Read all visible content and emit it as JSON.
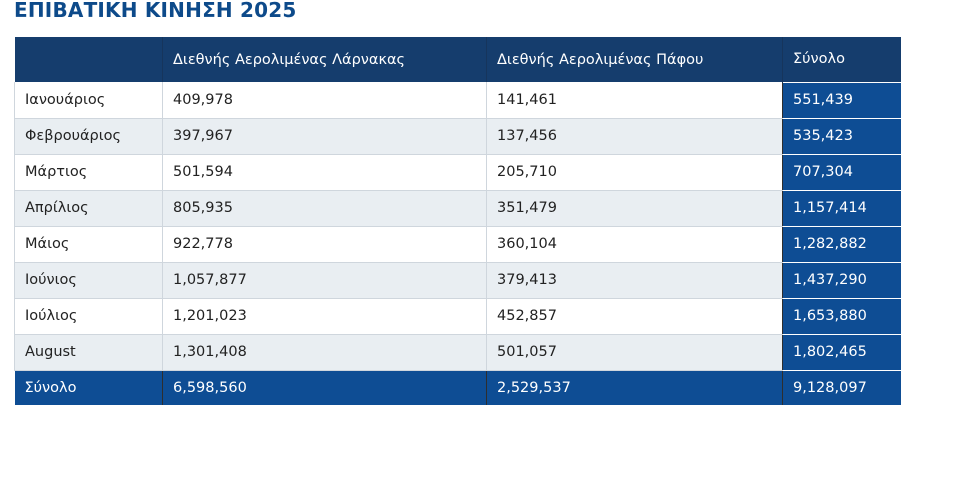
{
  "page": {
    "title": "ΕΠΙΒΑΤΙΚΗ ΚΙΝΗΣΗ 2025"
  },
  "table": {
    "headers": [
      "",
      "Διεθνής Αερολιμένας Λάρνακας",
      "Διεθνής Αερολιμένας Πάφου",
      "Σύνολο"
    ],
    "rows": [
      {
        "month": "Ιανουάριος",
        "larnaca": "409,978",
        "paphos": "141,461",
        "total": "551,439"
      },
      {
        "month": "Φεβρουάριος",
        "larnaca": "397,967",
        "paphos": "137,456",
        "total": "535,423"
      },
      {
        "month": "Μάρτιος",
        "larnaca": "501,594",
        "paphos": "205,710",
        "total": "707,304"
      },
      {
        "month": "Απρίλιος",
        "larnaca": "805,935",
        "paphos": "351,479",
        "total": "1,157,414"
      },
      {
        "month": "Μάιος",
        "larnaca": "922,778",
        "paphos": "360,104",
        "total": "1,282,882"
      },
      {
        "month": "Ιούνιος",
        "larnaca": "1,057,877",
        "paphos": "379,413",
        "total": "1,437,290"
      },
      {
        "month": "Ιούλιος",
        "larnaca": "1,201,023",
        "paphos": "452,857",
        "total": "1,653,880"
      },
      {
        "month": "August",
        "larnaca": "1,301,408",
        "paphos": "501,057",
        "total": "1,802,465"
      }
    ],
    "footer": {
      "label": "Σύνολο",
      "larnaca": "6,598,560",
      "paphos": "2,529,537",
      "total": "9,128,097"
    }
  },
  "colors": {
    "title": "#0d4a8a",
    "header_bg": "#153d6d",
    "total_bg": "#0e4d94",
    "stripe_bg": "#e9eef2"
  }
}
